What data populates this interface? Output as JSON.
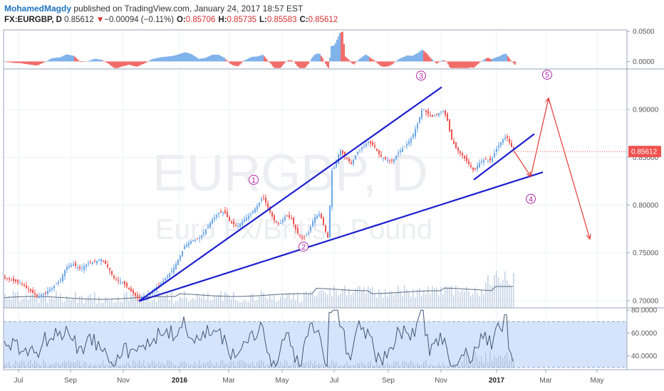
{
  "header": {
    "author": "MohamedMagdy",
    "published": "published on TradingView.com, January 24, 2017 18:57 EST",
    "symbol": "FX:EURGBP, D",
    "price": "0.85612",
    "change_arrow": "▼",
    "change": "−0.00094 (−0.11%)",
    "o_label": "O:",
    "o_value": "0.85706",
    "h_label": "H:",
    "h_value": "0.85735",
    "l_label": "L:",
    "l_value": "0.85583",
    "c_label": "C:",
    "c_value": "0.85612"
  },
  "watermark": {
    "symbol": "EURGBP, D",
    "name": "Euro Fx/British Pound"
  },
  "colors": {
    "up": "#6ba6e8",
    "down": "#ef5350",
    "trendline": "#1c1fcf",
    "projection": "#e53935",
    "wave_label": "#b02aa8",
    "rsi_band": "#d6e4fb",
    "price_tag": "#ef5350",
    "volume": "#b8c9de"
  },
  "chart_data": {
    "type": "line",
    "title": "FX:EURGBP, D",
    "x_labels": [
      "Jul",
      "Sep",
      "Nov",
      "2016",
      "Mar",
      "May",
      "Jul",
      "Sep",
      "Nov",
      "2017",
      "Mar",
      "May"
    ],
    "x_labels_bold": [
      "2016",
      "2017"
    ],
    "price_axis": {
      "ticks": [
        "0.90000",
        "0.85000",
        "0.80000",
        "0.75000",
        "0.70000"
      ],
      "ylim": [
        0.6925,
        0.9425
      ]
    },
    "last_price_label": "0.85612",
    "price_path": [
      [
        0,
        0.725
      ],
      [
        14,
        0.722
      ],
      [
        28,
        0.718
      ],
      [
        40,
        0.711
      ],
      [
        52,
        0.704
      ],
      [
        62,
        0.708
      ],
      [
        74,
        0.715
      ],
      [
        84,
        0.722
      ],
      [
        92,
        0.735
      ],
      [
        102,
        0.738
      ],
      [
        112,
        0.733
      ],
      [
        122,
        0.739
      ],
      [
        132,
        0.741
      ],
      [
        142,
        0.744
      ],
      [
        152,
        0.733
      ],
      [
        160,
        0.722
      ],
      [
        170,
        0.72
      ],
      [
        180,
        0.712
      ],
      [
        192,
        0.703
      ],
      [
        204,
        0.705
      ],
      [
        214,
        0.711
      ],
      [
        222,
        0.716
      ],
      [
        232,
        0.724
      ],
      [
        242,
        0.733
      ],
      [
        250,
        0.744
      ],
      [
        258,
        0.757
      ],
      [
        268,
        0.763
      ],
      [
        278,
        0.765
      ],
      [
        286,
        0.772
      ],
      [
        296,
        0.784
      ],
      [
        306,
        0.792
      ],
      [
        314,
        0.793
      ],
      [
        322,
        0.782
      ],
      [
        332,
        0.778
      ],
      [
        340,
        0.784
      ],
      [
        350,
        0.79
      ],
      [
        360,
        0.799
      ],
      [
        368,
        0.809
      ],
      [
        376,
        0.796
      ],
      [
        384,
        0.784
      ],
      [
        392,
        0.78
      ],
      [
        400,
        0.789
      ],
      [
        408,
        0.786
      ],
      [
        416,
        0.771
      ],
      [
        424,
        0.765
      ],
      [
        432,
        0.771
      ],
      [
        440,
        0.787
      ],
      [
        448,
        0.791
      ],
      [
        456,
        0.772
      ],
      [
        460,
        0.764
      ],
      [
        464,
        0.835
      ],
      [
        470,
        0.842
      ],
      [
        476,
        0.858
      ],
      [
        484,
        0.85
      ],
      [
        492,
        0.843
      ],
      [
        500,
        0.855
      ],
      [
        508,
        0.861
      ],
      [
        516,
        0.866
      ],
      [
        524,
        0.862
      ],
      [
        532,
        0.852
      ],
      [
        540,
        0.848
      ],
      [
        550,
        0.846
      ],
      [
        558,
        0.855
      ],
      [
        568,
        0.862
      ],
      [
        578,
        0.872
      ],
      [
        586,
        0.887
      ],
      [
        592,
        0.902
      ],
      [
        596,
        0.898
      ],
      [
        604,
        0.892
      ],
      [
        612,
        0.895
      ],
      [
        620,
        0.899
      ],
      [
        626,
        0.892
      ],
      [
        632,
        0.87
      ],
      [
        640,
        0.858
      ],
      [
        648,
        0.852
      ],
      [
        656,
        0.844
      ],
      [
        664,
        0.836
      ],
      [
        672,
        0.844
      ],
      [
        680,
        0.848
      ],
      [
        688,
        0.847
      ],
      [
        696,
        0.859
      ],
      [
        704,
        0.868
      ],
      [
        710,
        0.872
      ],
      [
        716,
        0.862
      ],
      [
        722,
        0.856
      ]
    ],
    "oscillator_axis": {
      "ticks": [
        "0.0500",
        "0.0000"
      ],
      "ylim": [
        -0.0125,
        0.0525
      ]
    },
    "rsi_axis": {
      "ticks": [
        "80.0000",
        "60.0000",
        "40.0000"
      ],
      "ylim": [
        28,
        82
      ],
      "band": [
        30,
        70
      ]
    },
    "trendlines": [
      {
        "from": [
          195,
          0.6995
        ],
        "to": [
          620,
          0.9235
        ]
      },
      {
        "from": [
          195,
          0.6995
        ],
        "to": [
          762,
          0.8345
        ]
      },
      {
        "from": [
          665,
          0.8265
        ],
        "to": [
          750,
          0.8745
        ]
      }
    ],
    "projection": [
      [
        722,
        0.856
      ],
      [
        745,
        0.83
      ],
      [
        770,
        0.912
      ],
      [
        828,
        0.7645
      ]
    ],
    "wave_labels": [
      {
        "text": "1",
        "at": [
          356,
          0.8265
        ]
      },
      {
        "text": "2",
        "at": [
          426,
          0.7565
        ]
      },
      {
        "text": "3",
        "at": [
          591,
          0.9355
        ]
      },
      {
        "text": "4",
        "at": [
          745,
          0.8065
        ]
      },
      {
        "text": "5",
        "at": [
          768,
          0.9365
        ]
      }
    ]
  }
}
